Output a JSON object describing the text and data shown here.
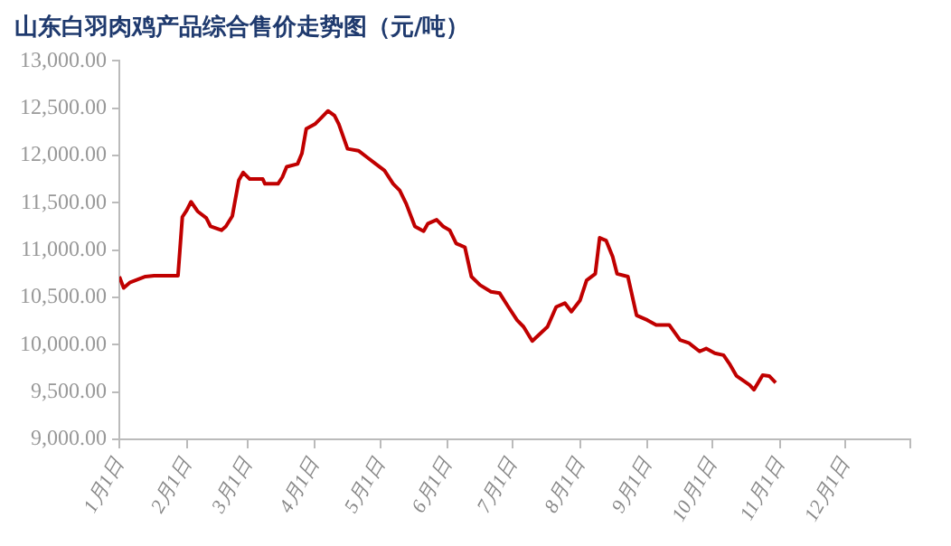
{
  "chart_data": {
    "type": "line",
    "title": "山东白羽肉鸡产品综合售价走势图（元/吨）",
    "x": [
      "--01-01",
      "--01-03",
      "--01-06",
      "--01-13",
      "--01-17",
      "--01-28",
      "--01-30",
      "--02-01",
      "--02-03",
      "--02-06",
      "--02-10",
      "--02-12",
      "--02-17",
      "--02-19",
      "--02-22",
      "--02-25",
      "--02-27",
      "--03-02",
      "--03-08",
      "--03-09",
      "--03-15",
      "--03-17",
      "--03-19",
      "--03-24",
      "--03-26",
      "--03-28",
      "--04-01",
      "--04-04",
      "--04-07",
      "--04-10",
      "--04-12",
      "--04-16",
      "--04-21",
      "--04-25",
      "--04-29",
      "--05-03",
      "--05-07",
      "--05-10",
      "--05-13",
      "--05-17",
      "--05-21",
      "--05-23",
      "--05-27",
      "--05-30",
      "--06-02",
      "--06-05",
      "--06-09",
      "--06-12",
      "--06-16",
      "--06-21",
      "--06-25",
      "--06-29",
      "--07-03",
      "--07-06",
      "--07-10",
      "--07-14",
      "--07-17",
      "--07-21",
      "--07-25",
      "--07-28",
      "--08-01",
      "--08-04",
      "--08-08",
      "--08-10",
      "--08-13",
      "--08-16",
      "--08-18",
      "--08-23",
      "--08-27",
      "--09-01",
      "--09-05",
      "--09-11",
      "--09-16",
      "--09-20",
      "--09-25",
      "--09-28",
      "--10-02",
      "--10-06",
      "--10-09",
      "--10-12",
      "--10-18",
      "--10-20",
      "--10-24",
      "--10-27",
      "--10-30"
    ],
    "series": [
      {
        "color": "#c00000",
        "values": [
          10720,
          10600,
          10660,
          10720,
          10730,
          10730,
          11350,
          11420,
          11510,
          11410,
          11340,
          11250,
          11210,
          11250,
          11360,
          11740,
          11820,
          11750,
          11750,
          11700,
          11700,
          11770,
          11880,
          11910,
          12020,
          12280,
          12330,
          12400,
          12470,
          12420,
          12330,
          12070,
          12050,
          11980,
          11910,
          11840,
          11700,
          11630,
          11490,
          11250,
          11200,
          11280,
          11320,
          11250,
          11210,
          11070,
          11030,
          10720,
          10630,
          10560,
          10545,
          10400,
          10260,
          10190,
          10040,
          10125,
          10190,
          10400,
          10440,
          10350,
          10470,
          10680,
          10750,
          11130,
          11100,
          10930,
          10750,
          10720,
          10310,
          10260,
          10210,
          10210,
          10050,
          10020,
          9930,
          9960,
          9910,
          9890,
          9790,
          9670,
          9575,
          9525,
          9680,
          9670,
          9600
        ]
      }
    ],
    "xlim": [
      "--01-01",
      "--12-31"
    ],
    "xticks": [
      {
        "value": "--01-01",
        "label": "1月1日"
      },
      {
        "value": "--02-01",
        "label": "2月1日"
      },
      {
        "value": "--03-01",
        "label": "3月1日"
      },
      {
        "value": "--04-01",
        "label": "4月1日"
      },
      {
        "value": "--05-01",
        "label": "5月1日"
      },
      {
        "value": "--06-01",
        "label": "6月1日"
      },
      {
        "value": "--07-01",
        "label": "7月1日"
      },
      {
        "value": "--08-01",
        "label": "8月1日"
      },
      {
        "value": "--09-01",
        "label": "9月1日"
      },
      {
        "value": "--10-01",
        "label": "10月1日"
      },
      {
        "value": "--11-01",
        "label": "11月1日"
      },
      {
        "value": "--12-01",
        "label": "12月1日"
      },
      {
        "value": "--12-31",
        "label": null
      }
    ],
    "ylim": [
      9000,
      13000
    ],
    "yticks": [
      {
        "value": 9000,
        "label": "9,000.00"
      },
      {
        "value": 9500,
        "label": "9,500.00"
      },
      {
        "value": 10000,
        "label": "10,000.00"
      },
      {
        "value": 10500,
        "label": "10,500.00"
      },
      {
        "value": 11000,
        "label": "11,000.00"
      },
      {
        "value": 11500,
        "label": "11,500.00"
      },
      {
        "value": 12000,
        "label": "12,000.00"
      },
      {
        "value": 12500,
        "label": "12,500.00"
      },
      {
        "value": 13000,
        "label": "13,000.00"
      }
    ],
    "grid": false,
    "legend": false,
    "marker": "none",
    "line_style": "solid"
  }
}
